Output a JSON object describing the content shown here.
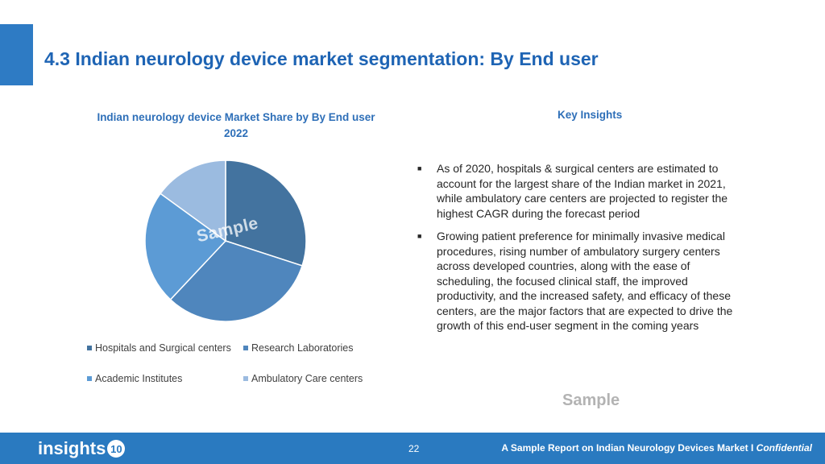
{
  "slide": {
    "title": "4.3 Indian neurology device market segmentation: By End user",
    "page_number": "22"
  },
  "chart": {
    "title_line1": "Indian neurology device Market Share by By End user",
    "title_line2": "2022",
    "watermark": "Sample"
  },
  "chart_data": {
    "type": "pie",
    "title": "Indian neurology device Market Share by By End user 2022",
    "categories": [
      "Hospitals and Surgical centers",
      "Research Laboratories",
      "Academic Institutes",
      "Ambulatory Care centers"
    ],
    "values": [
      30,
      32,
      23,
      15
    ],
    "colors": [
      "#43739f",
      "#4f86bd",
      "#5c9bd5",
      "#9bbbe0"
    ],
    "legend_position": "bottom"
  },
  "insights": {
    "title": "Key Insights",
    "bullets": [
      "As of 2020, hospitals & surgical centers are estimated to account for the largest share of the Indian market in 2021, while ambulatory care centers are projected to register the highest CAGR during the forecast period",
      "Growing patient preference for minimally invasive medical procedures, rising number of ambulatory surgery centers across developed countries, along with the ease of scheduling, the focused clinical staff, the improved productivity, and the increased safety, and efficacy of these centers, are the major factors that are expected to drive the growth of this end-user segment in the coming years"
    ],
    "watermark": "Sample"
  },
  "footer": {
    "logo_text": "insights",
    "logo_number": "10",
    "report_text": "A Sample Report on Indian Neurology Devices Market I ",
    "confidential": "Confidential"
  }
}
